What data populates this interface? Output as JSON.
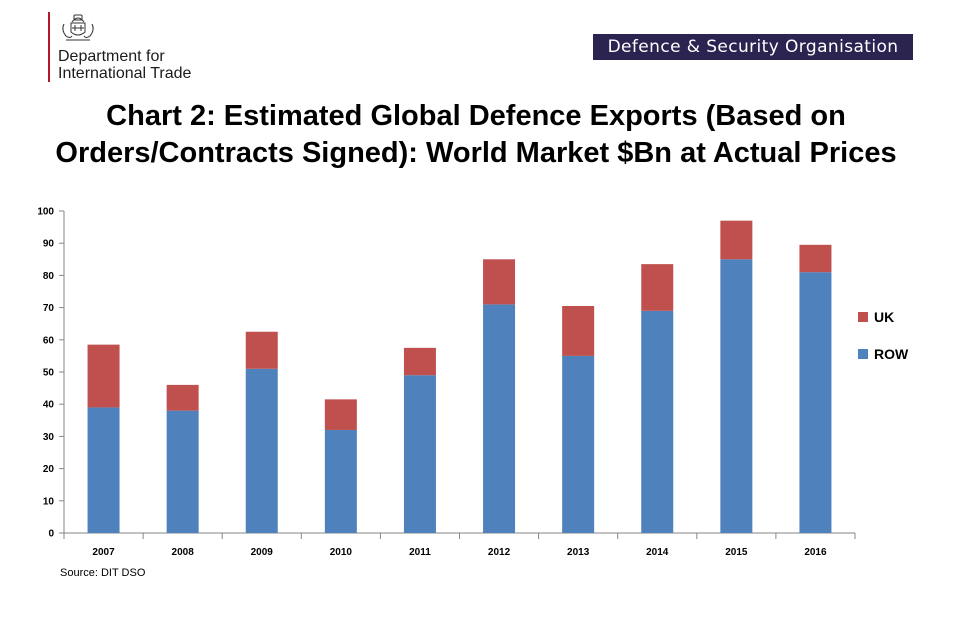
{
  "header": {
    "dept_line1": "Department for",
    "dept_line2": "International Trade",
    "dso_banner": "Defence & Security Organisation",
    "brand_red": "#b5172a",
    "banner_color": "#2b2350"
  },
  "source_note": "Source: DIT DSO",
  "chart_data": {
    "type": "bar",
    "stacked": true,
    "title": "Chart 2: Estimated Global Defence Exports (Based on Orders/Contracts Signed): World Market $Bn at Actual Prices",
    "xlabel": "",
    "ylabel": "",
    "ylim": [
      0,
      100
    ],
    "yticks": [
      0,
      10,
      20,
      30,
      40,
      50,
      60,
      70,
      80,
      90,
      100
    ],
    "categories": [
      "2007",
      "2008",
      "2009",
      "2010",
      "2011",
      "2012",
      "2013",
      "2014",
      "2015",
      "2016"
    ],
    "series": [
      {
        "name": "ROW",
        "color": "#4f81bd",
        "values": [
          39,
          38,
          51,
          32,
          49,
          71,
          55,
          69,
          85,
          81
        ]
      },
      {
        "name": "UK",
        "color": "#c0504d",
        "values": [
          19.5,
          8,
          11.5,
          9.5,
          8.5,
          14,
          15.5,
          14.5,
          12,
          8.5
        ]
      }
    ],
    "legend": {
      "position": "right",
      "order": [
        "UK",
        "ROW"
      ]
    },
    "grid": false
  }
}
